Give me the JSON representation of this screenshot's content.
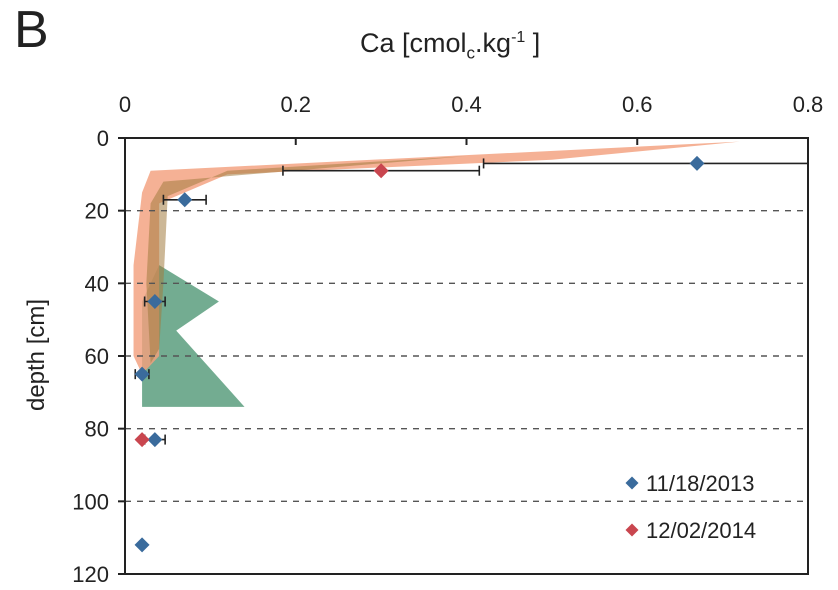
{
  "panel_label": "B",
  "chart_data": {
    "type": "scatter",
    "title": "",
    "xlabel": {
      "main": "Ca [cmol",
      "sub": "c",
      "mid": ".kg",
      "sup": "-1",
      "end": " ]"
    },
    "ylabel": "depth [cm]",
    "xlim": [
      0,
      0.8
    ],
    "ylim": [
      0,
      120
    ],
    "x_ticks": [
      "0",
      "0.2",
      "0.4",
      "0.6",
      "0.8"
    ],
    "y_ticks": [
      "0",
      "20",
      "40",
      "60",
      "80",
      "100",
      "120"
    ],
    "y_inverted": true,
    "x_axis_position": "top",
    "gridlines": "horizontal dashed",
    "legend_position": "bottom-right",
    "series": [
      {
        "name": "11/18/2013",
        "marker": "diamond",
        "color": "#3a6b9c",
        "band_color": "#5a9e7e",
        "points": [
          {
            "x": 0.67,
            "y": 7,
            "xerr": 0.25
          },
          {
            "x": 0.07,
            "y": 17,
            "xerr": 0.025
          },
          {
            "x": 0.035,
            "y": 45,
            "xerr": 0.012
          },
          {
            "x": 0.02,
            "y": 65,
            "xerr": 0.008
          },
          {
            "x": 0.035,
            "y": 83,
            "xerr": 0.012
          },
          {
            "x": 0.02,
            "y": 112,
            "xerr": 0.0
          }
        ]
      },
      {
        "name": "12/02/2014",
        "marker": "diamond",
        "color": "#c9464f",
        "band_color": "#f3a07e",
        "points": [
          {
            "x": 0.3,
            "y": 9,
            "xerr": 0.115
          },
          {
            "x": 0.02,
            "y": 83,
            "xerr": 0.0
          }
        ]
      }
    ]
  }
}
